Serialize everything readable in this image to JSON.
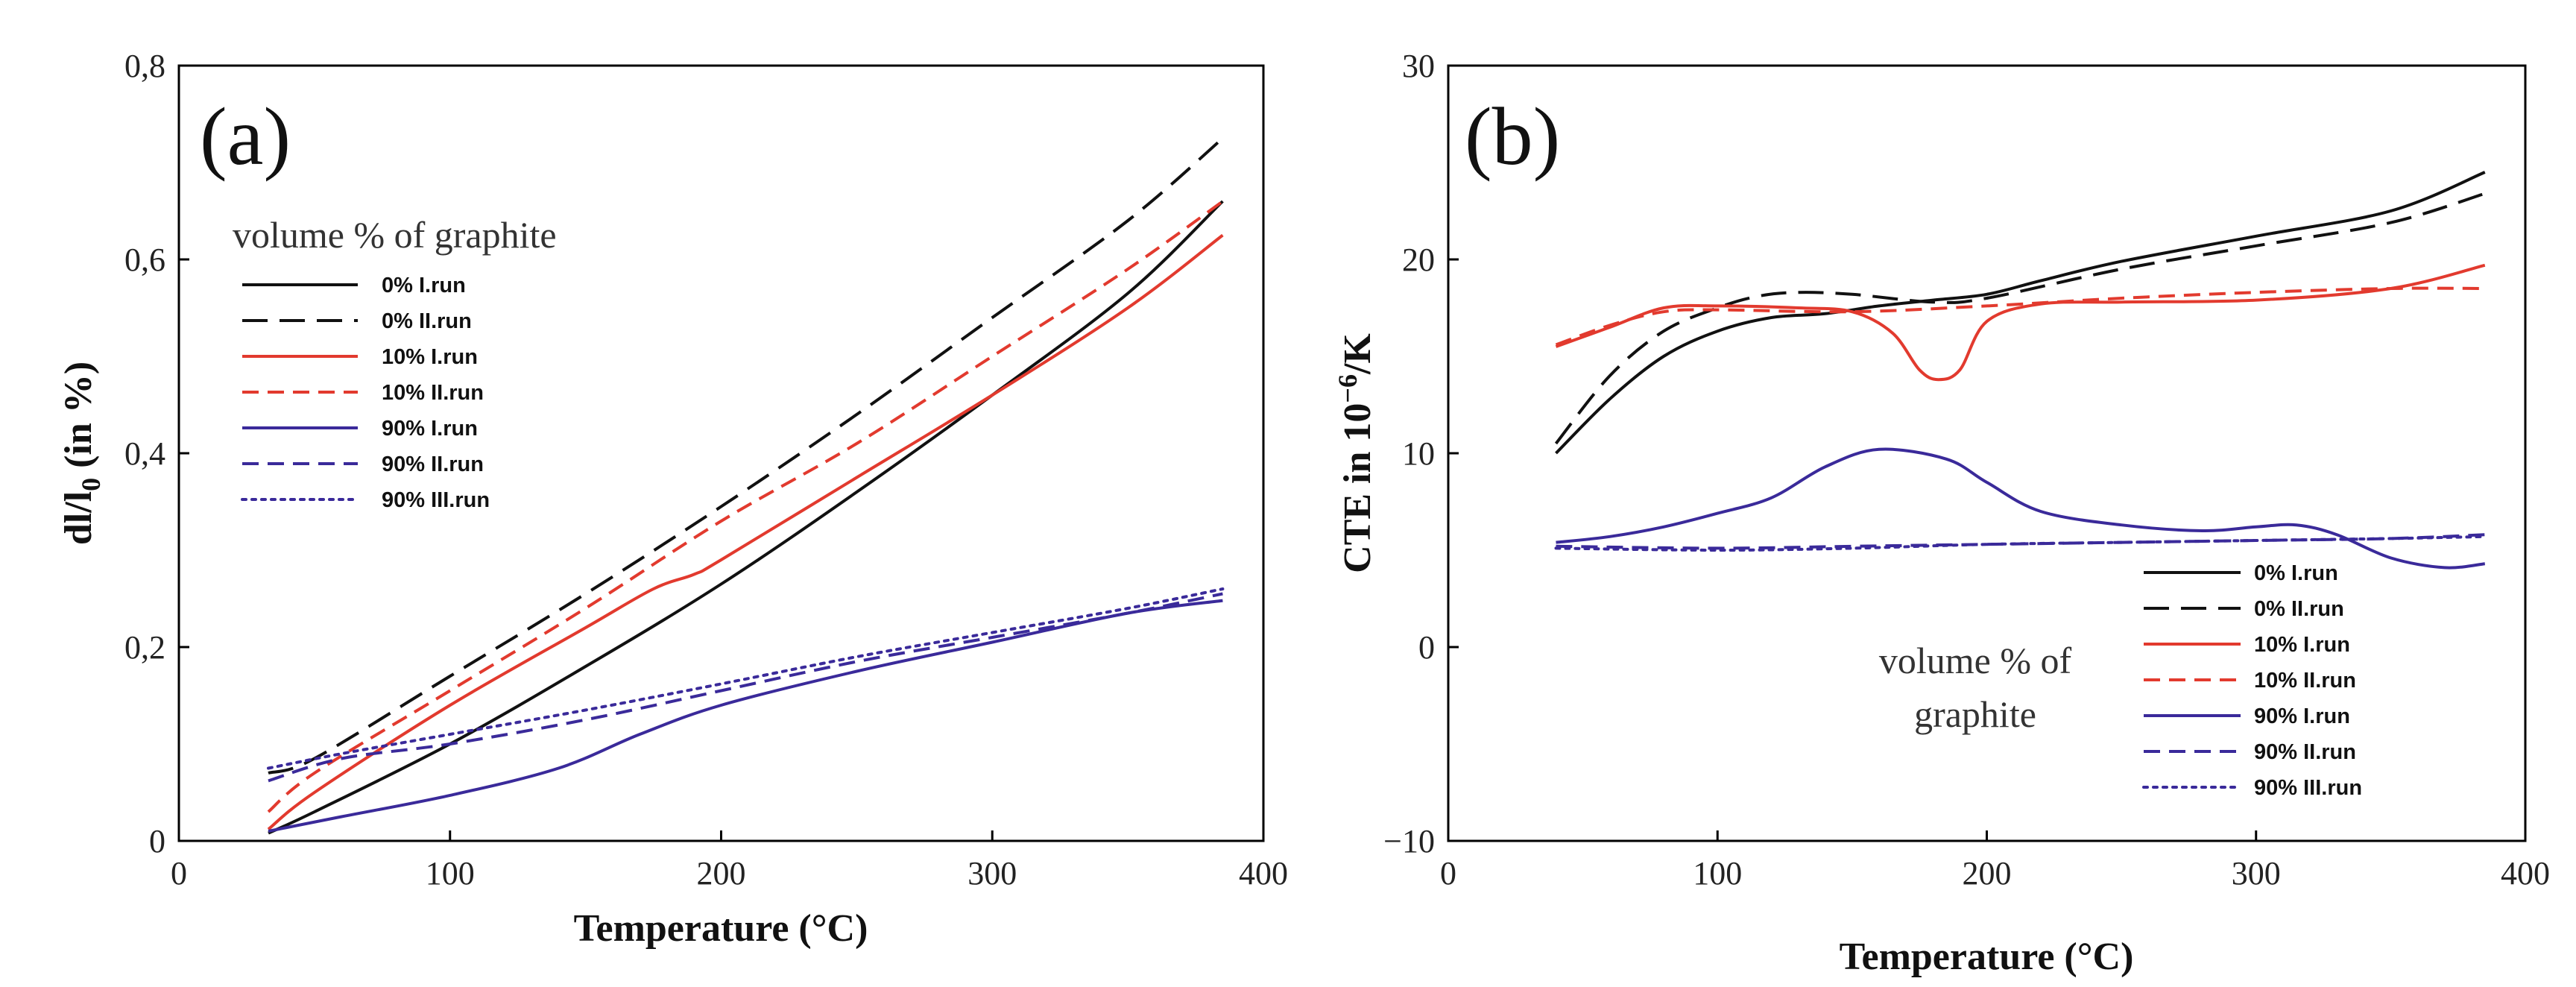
{
  "colors": {
    "black": "#111111",
    "red": "#e23a2e",
    "blue": "#3a2a9a"
  },
  "chart_data": [
    {
      "type": "line",
      "panel_label": "(a)",
      "xlabel": "Temperature (°C)",
      "ylabel_main": "dl/l",
      "ylabel_sub": "0",
      "ylabel_tail": " (in %)",
      "xlim": [
        0,
        400
      ],
      "ylim": [
        0,
        0.8
      ],
      "xticks": [
        0,
        100,
        200,
        300,
        400
      ],
      "yticks": [
        0,
        0.2,
        0.4,
        0.6,
        0.8
      ],
      "xtick_labels": [
        "0",
        "100",
        "200",
        "300",
        "400"
      ],
      "ytick_labels": [
        "0",
        "0,2",
        "0,4",
        "0,6",
        "0,8"
      ],
      "legend_title": "volume % of graphite",
      "series": [
        {
          "name": "0% I.run",
          "color": "black",
          "dash": "solid",
          "x": [
            33,
            50,
            100,
            150,
            200,
            250,
            300,
            350,
            385
          ],
          "y": [
            0.008,
            0.03,
            0.1,
            0.18,
            0.265,
            0.36,
            0.46,
            0.565,
            0.66
          ]
        },
        {
          "name": "0% II.run",
          "color": "black",
          "dash": "long",
          "x": [
            33,
            50,
            100,
            150,
            200,
            250,
            300,
            350,
            385
          ],
          "y": [
            0.07,
            0.085,
            0.17,
            0.255,
            0.345,
            0.44,
            0.54,
            0.64,
            0.725
          ]
        },
        {
          "name": "10% I.run",
          "color": "red",
          "dash": "solid",
          "x": [
            33,
            50,
            100,
            150,
            175,
            190,
            200,
            250,
            300,
            350,
            385
          ],
          "y": [
            0.012,
            0.05,
            0.14,
            0.22,
            0.26,
            0.275,
            0.29,
            0.375,
            0.46,
            0.55,
            0.625
          ]
        },
        {
          "name": "10% II.run",
          "color": "red",
          "dash": "medium",
          "x": [
            33,
            50,
            100,
            150,
            200,
            250,
            300,
            350,
            385
          ],
          "y": [
            0.03,
            0.07,
            0.155,
            0.24,
            0.33,
            0.41,
            0.5,
            0.59,
            0.66
          ]
        },
        {
          "name": "90% I.run",
          "color": "blue",
          "dash": "solid",
          "x": [
            33,
            60,
            100,
            140,
            170,
            200,
            250,
            300,
            350,
            385
          ],
          "y": [
            0.01,
            0.025,
            0.047,
            0.075,
            0.11,
            0.14,
            0.175,
            0.205,
            0.235,
            0.248
          ]
        },
        {
          "name": "90% II.run",
          "color": "blue",
          "dash": "medium",
          "x": [
            33,
            60,
            100,
            150,
            200,
            250,
            300,
            350,
            385
          ],
          "y": [
            0.062,
            0.085,
            0.1,
            0.125,
            0.155,
            0.185,
            0.21,
            0.235,
            0.255
          ]
        },
        {
          "name": "90% III.run",
          "color": "blue",
          "dash": "dotted",
          "x": [
            33,
            60,
            100,
            150,
            200,
            250,
            300,
            350,
            385
          ],
          "y": [
            0.075,
            0.09,
            0.11,
            0.135,
            0.162,
            0.19,
            0.215,
            0.24,
            0.26
          ]
        }
      ]
    },
    {
      "type": "line",
      "panel_label": "(b)",
      "xlabel": "Temperature (°C)",
      "ylabel_main": "CTE in 10",
      "ylabel_sup": "−6",
      "ylabel_tail": "/K",
      "xlim": [
        0,
        400
      ],
      "ylim": [
        -10,
        30
      ],
      "xticks": [
        0,
        100,
        200,
        300,
        400
      ],
      "yticks": [
        -10,
        0,
        10,
        20,
        30
      ],
      "xtick_labels": [
        "0",
        "100",
        "200",
        "300",
        "400"
      ],
      "ytick_labels": [
        "−10",
        "0",
        "10",
        "20",
        "30"
      ],
      "legend_title_1": "volume % of",
      "legend_title_2": "graphite",
      "series": [
        {
          "name": "0%  I.run",
          "color": "black",
          "dash": "solid",
          "x": [
            40,
            60,
            80,
            100,
            120,
            140,
            160,
            180,
            200,
            220,
            250,
            300,
            350,
            385
          ],
          "y": [
            10,
            12.8,
            15,
            16.3,
            17,
            17.2,
            17.6,
            17.9,
            18.2,
            18.9,
            19.9,
            21.2,
            22.5,
            24.5
          ]
        },
        {
          "name": "0%  II.run",
          "color": "black",
          "dash": "long",
          "x": [
            40,
            60,
            80,
            100,
            115,
            130,
            150,
            180,
            200,
            250,
            300,
            350,
            385
          ],
          "y": [
            10.5,
            14,
            16.3,
            17.5,
            18.1,
            18.3,
            18.2,
            17.8,
            18,
            19.5,
            20.7,
            21.9,
            23.4
          ]
        },
        {
          "name": "10%  I.run",
          "color": "red",
          "dash": "solid",
          "x": [
            40,
            60,
            80,
            100,
            130,
            150,
            165,
            175,
            182,
            190,
            200,
            220,
            250,
            300,
            350,
            385
          ],
          "y": [
            15.5,
            16.5,
            17.5,
            17.6,
            17.5,
            17.3,
            16.2,
            14.3,
            13.8,
            14.3,
            16.8,
            17.7,
            17.8,
            17.9,
            18.5,
            19.7
          ]
        },
        {
          "name": "10%  II.run",
          "color": "red",
          "dash": "medium",
          "x": [
            40,
            60,
            80,
            100,
            150,
            200,
            250,
            300,
            350,
            385
          ],
          "y": [
            15.6,
            16.6,
            17.3,
            17.4,
            17.3,
            17.6,
            18,
            18.3,
            18.5,
            18.5
          ]
        },
        {
          "name": "90%  I.run",
          "color": "blue",
          "dash": "solid",
          "x": [
            40,
            60,
            80,
            100,
            120,
            140,
            160,
            185,
            200,
            220,
            250,
            280,
            300,
            315,
            330,
            350,
            370,
            385
          ],
          "y": [
            5.4,
            5.7,
            6.2,
            6.9,
            7.7,
            9.3,
            10.2,
            9.7,
            8.5,
            7,
            6.3,
            6,
            6.2,
            6.3,
            5.8,
            4.6,
            4.1,
            4.3
          ]
        },
        {
          "name": "90%  II.run",
          "color": "blue",
          "dash": "medium",
          "x": [
            40,
            100,
            150,
            200,
            250,
            300,
            350,
            385
          ],
          "y": [
            5.2,
            5.1,
            5.2,
            5.3,
            5.4,
            5.5,
            5.6,
            5.8
          ]
        },
        {
          "name": "90%  III.run",
          "color": "blue",
          "dash": "dotted",
          "x": [
            40,
            100,
            150,
            200,
            250,
            300,
            350,
            385
          ],
          "y": [
            5.1,
            5,
            5.1,
            5.3,
            5.4,
            5.5,
            5.6,
            5.7
          ]
        }
      ]
    }
  ]
}
